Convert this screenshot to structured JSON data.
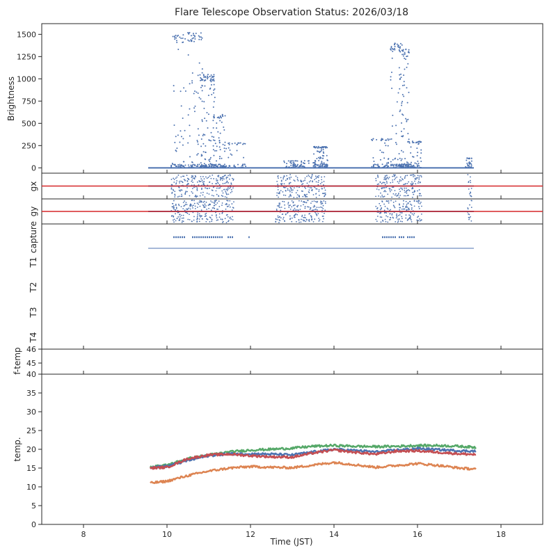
{
  "title": "Flare Telescope Observation Status: 2026/03/18",
  "xlabel": "Time (JST)",
  "colors": {
    "blue": "#4c72b0",
    "orange": "#dd8452",
    "green": "#55a868",
    "red": "#c44e52",
    "refline": "#d62728",
    "axis": "#262626"
  },
  "chart_data": [
    {
      "panel": "brightness",
      "type": "scatter",
      "ylabel": "Brightness",
      "xlim": [
        7,
        19
      ],
      "ylim": [
        -60,
        1620
      ],
      "yticks": [
        0,
        250,
        500,
        750,
        1000,
        1250,
        1500
      ],
      "series": [
        {
          "color": "blue",
          "baseline": {
            "x": [
              9.55,
              17.35
            ],
            "y": 0
          },
          "bursts": [
            {
              "x": [
                10.1,
                10.45
              ],
              "level": 1500,
              "density": 70
            },
            {
              "x": [
                10.5,
                10.85
              ],
              "level": 1520,
              "density": 90
            },
            {
              "x": [
                10.8,
                11.15
              ],
              "level": 1050,
              "density": 140
            },
            {
              "x": [
                11.1,
                11.4
              ],
              "level": 600,
              "density": 90
            },
            {
              "x": [
                11.4,
                11.9
              ],
              "level": 280,
              "density": 45
            },
            {
              "x": [
                12.8,
                13.4
              ],
              "level": 80,
              "density": 60
            },
            {
              "x": [
                13.5,
                13.85
              ],
              "level": 240,
              "density": 120
            },
            {
              "x": [
                14.9,
                15.35
              ],
              "level": 330,
              "density": 60
            },
            {
              "x": [
                15.35,
                15.65
              ],
              "level": 1400,
              "density": 90
            },
            {
              "x": [
                15.6,
                15.8
              ],
              "level": 1340,
              "density": 90
            },
            {
              "x": [
                15.8,
                16.1
              ],
              "level": 300,
              "density": 60
            },
            {
              "x": [
                17.15,
                17.3
              ],
              "level": 110,
              "density": 30
            }
          ]
        }
      ]
    },
    {
      "panel": "gx",
      "type": "scatter",
      "ylabel": "gx",
      "xlim": [
        7,
        19
      ],
      "series": [
        {
          "color": "blue",
          "x_range": [
            9.55,
            17.35
          ],
          "noisy_ranges": [
            [
              10.1,
              11.6
            ],
            [
              12.6,
              13.8
            ],
            [
              15.0,
              16.1
            ],
            [
              17.2,
              17.3
            ]
          ]
        }
      ],
      "reference_line": {
        "color": "refline",
        "y": 0
      }
    },
    {
      "panel": "gy",
      "type": "scatter",
      "ylabel": "gy",
      "xlim": [
        7,
        19
      ],
      "series": [
        {
          "color": "blue",
          "x_range": [
            9.55,
            17.35
          ],
          "noisy_ranges": [
            [
              10.1,
              11.6
            ],
            [
              12.6,
              13.8
            ],
            [
              15.0,
              16.1
            ],
            [
              17.2,
              17.3
            ]
          ]
        }
      ],
      "reference_line": {
        "color": "refline",
        "y": 0
      }
    },
    {
      "panel": "status",
      "type": "scatter",
      "ylabels": [
        "capture",
        "T1",
        "T2",
        "T3",
        "T4"
      ],
      "xlim": [
        7,
        19
      ],
      "capture_segments": [
        [
          10.15,
          10.45
        ],
        [
          10.6,
          11.35
        ],
        [
          11.45,
          11.6
        ],
        [
          11.95,
          11.98
        ],
        [
          15.15,
          15.5
        ],
        [
          15.55,
          15.7
        ],
        [
          15.75,
          15.95
        ]
      ],
      "t1_segments": [
        [
          9.55,
          17.35
        ]
      ]
    },
    {
      "panel": "f-temp",
      "type": "line",
      "ylabel": "f-temp",
      "xlim": [
        7,
        19
      ],
      "ylim": [
        44.2,
        46
      ],
      "yticks": [
        45,
        46
      ],
      "series": []
    },
    {
      "panel": "temp",
      "type": "line",
      "ylabel": "temp.",
      "xlim": [
        7,
        19
      ],
      "ylim": [
        0,
        40
      ],
      "xticks": [
        8,
        10,
        12,
        14,
        16,
        18
      ],
      "yticks": [
        0,
        5,
        10,
        15,
        20,
        25,
        30,
        35,
        40
      ],
      "series": [
        {
          "color": "green",
          "x": [
            9.6,
            10.0,
            10.5,
            11.0,
            11.5,
            12.0,
            12.5,
            13.0,
            13.5,
            14.0,
            14.5,
            15.0,
            15.5,
            16.0,
            16.5,
            17.0,
            17.4
          ],
          "y": [
            15.3,
            15.8,
            17.5,
            18.5,
            19.3,
            19.8,
            20.0,
            20.3,
            20.8,
            21.0,
            20.8,
            20.7,
            20.8,
            21.0,
            21.0,
            20.8,
            20.5
          ]
        },
        {
          "color": "blue",
          "x": [
            9.6,
            10.0,
            10.5,
            11.0,
            11.5,
            12.0,
            12.5,
            13.0,
            13.5,
            14.0,
            14.5,
            15.0,
            15.5,
            16.0,
            16.5,
            17.0,
            17.4
          ],
          "y": [
            15.2,
            15.5,
            17.0,
            18.3,
            18.8,
            18.8,
            18.7,
            18.5,
            19.3,
            20.0,
            19.7,
            19.3,
            19.8,
            20.2,
            19.9,
            19.6,
            19.5
          ]
        },
        {
          "color": "red",
          "x": [
            9.6,
            10.0,
            10.5,
            11.0,
            11.5,
            12.0,
            12.5,
            13.0,
            13.5,
            14.0,
            14.5,
            15.0,
            15.5,
            16.0,
            16.5,
            17.0,
            17.4
          ],
          "y": [
            15.0,
            15.2,
            17.5,
            18.5,
            18.7,
            18.3,
            18.0,
            17.9,
            19.0,
            19.8,
            19.2,
            18.7,
            19.5,
            19.6,
            19.2,
            18.8,
            18.6
          ]
        },
        {
          "color": "orange",
          "x": [
            9.6,
            10.0,
            10.5,
            11.0,
            11.5,
            12.0,
            12.5,
            13.0,
            13.5,
            14.0,
            14.5,
            15.0,
            15.5,
            16.0,
            16.5,
            17.0,
            17.4
          ],
          "y": [
            11.0,
            11.5,
            13.0,
            14.2,
            15.0,
            15.4,
            15.2,
            15.1,
            15.8,
            16.5,
            15.9,
            15.2,
            15.7,
            16.2,
            15.7,
            15.0,
            14.7
          ]
        }
      ]
    }
  ]
}
